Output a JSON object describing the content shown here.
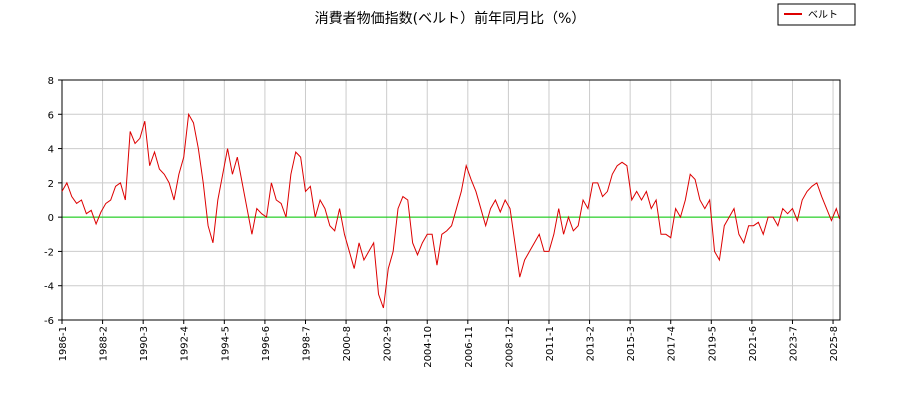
{
  "chart_data": {
    "type": "line",
    "title": "消費者物価指数(ベルト）前年同月比（%）",
    "x": [
      1986,
      1986.25,
      1986.5,
      1986.75,
      1987,
      1987.25,
      1987.5,
      1987.75,
      1988,
      1988.25,
      1988.5,
      1988.75,
      1989,
      1989.25,
      1989.5,
      1989.75,
      1990,
      1990.25,
      1990.5,
      1990.75,
      1991,
      1991.25,
      1991.5,
      1991.75,
      1992,
      1992.25,
      1992.5,
      1992.75,
      1993,
      1993.25,
      1993.5,
      1993.75,
      1994,
      1994.25,
      1994.5,
      1994.75,
      1995,
      1995.25,
      1995.5,
      1995.75,
      1996,
      1996.25,
      1996.5,
      1996.75,
      1997,
      1997.25,
      1997.5,
      1997.75,
      1998,
      1998.25,
      1998.5,
      1998.75,
      1999,
      1999.25,
      1999.5,
      1999.75,
      2000,
      2000.25,
      2000.5,
      2000.75,
      2001,
      2001.25,
      2001.5,
      2001.75,
      2002,
      2002.25,
      2002.5,
      2002.75,
      2003,
      2003.25,
      2003.5,
      2003.75,
      2004,
      2004.25,
      2004.5,
      2004.75,
      2005,
      2005.25,
      2005.5,
      2005.75,
      2006,
      2006.25,
      2006.5,
      2006.75,
      2007,
      2007.25,
      2007.5,
      2007.75,
      2008,
      2008.25,
      2008.5,
      2008.75,
      2009,
      2009.25,
      2009.5,
      2009.75,
      2010,
      2010.25,
      2010.5,
      2010.75,
      2011,
      2011.25,
      2011.5,
      2011.75,
      2012,
      2012.25,
      2012.5,
      2012.75,
      2013,
      2013.25,
      2013.5,
      2013.75,
      2014,
      2014.25,
      2014.5,
      2014.75,
      2015,
      2015.25,
      2015.5,
      2015.75,
      2016,
      2016.25,
      2016.5,
      2016.75,
      2017,
      2017.25,
      2017.5,
      2017.75,
      2018,
      2018.25,
      2018.5,
      2018.75,
      2019,
      2019.25,
      2019.5,
      2019.75,
      2020,
      2020.25,
      2020.5,
      2020.75,
      2021,
      2021.25,
      2021.5,
      2021.75,
      2022,
      2022.25,
      2022.5,
      2022.75,
      2023,
      2023.25,
      2023.5,
      2023.75,
      2024,
      2024.25,
      2024.5,
      2024.75,
      2025,
      2025.25,
      2025.5,
      2025.75,
      2025.917
    ],
    "series": [
      {
        "name": "ベルト",
        "color": "#dd0000",
        "values": [
          1.5,
          2.0,
          1.2,
          0.8,
          1.0,
          0.2,
          0.4,
          -0.4,
          0.3,
          0.8,
          1.0,
          1.8,
          2.0,
          1.0,
          5.0,
          4.3,
          4.6,
          5.6,
          3.0,
          3.8,
          2.8,
          2.5,
          2.0,
          1.0,
          2.5,
          3.5,
          6.0,
          5.5,
          4.0,
          2.0,
          -0.5,
          -1.5,
          1.0,
          2.5,
          4.0,
          2.5,
          3.5,
          2.0,
          0.5,
          -1.0,
          0.5,
          0.2,
          0.0,
          2.0,
          1.0,
          0.8,
          0.0,
          2.5,
          3.8,
          3.5,
          1.5,
          1.8,
          0.0,
          1.0,
          0.5,
          -0.5,
          -0.8,
          0.5,
          -1.0,
          -2.0,
          -3.0,
          -1.5,
          -2.5,
          -2.0,
          -1.5,
          -4.5,
          -5.3,
          -3.0,
          -2.0,
          0.5,
          1.2,
          1.0,
          -1.5,
          -2.2,
          -1.5,
          -1.0,
          -1.0,
          -2.8,
          -1.0,
          -0.8,
          -0.5,
          0.5,
          1.5,
          3.0,
          2.2,
          1.5,
          0.5,
          -0.5,
          0.5,
          1.0,
          0.3,
          1.0,
          0.5,
          -1.5,
          -3.5,
          -2.5,
          -2.0,
          -1.5,
          -1.0,
          -2.0,
          -2.0,
          -1.0,
          0.5,
          -1.0,
          0.0,
          -0.8,
          -0.5,
          1.0,
          0.5,
          2.0,
          2.0,
          1.2,
          1.5,
          2.5,
          3.0,
          3.2,
          3.0,
          1.0,
          1.5,
          1.0,
          1.5,
          0.5,
          1.0,
          -1.0,
          -1.0,
          -1.2,
          0.5,
          0.0,
          1.0,
          2.5,
          2.2,
          1.0,
          0.5,
          1.0,
          -2.0,
          -2.5,
          -0.5,
          0.0,
          0.5,
          -1.0,
          -1.5,
          -0.5,
          -0.5,
          -0.3,
          -1.0,
          0.0,
          0.0,
          -0.5,
          0.5,
          0.2,
          0.5,
          -0.2,
          1.0,
          1.5,
          1.8,
          2.0,
          1.2,
          0.5,
          -0.2,
          0.5,
          -0.1
        ]
      }
    ],
    "xlim": [
      1986,
      2025.94
    ],
    "xticks": [
      {
        "value": 1986,
        "label": "1986-1"
      },
      {
        "value": 1988.083,
        "label": "1988-2"
      },
      {
        "value": 1990.167,
        "label": "1990-3"
      },
      {
        "value": 1992.25,
        "label": "1992-4"
      },
      {
        "value": 1994.333,
        "label": "1994-5"
      },
      {
        "value": 1996.417,
        "label": "1996-6"
      },
      {
        "value": 1998.5,
        "label": "1998-7"
      },
      {
        "value": 2000.583,
        "label": "2000-8"
      },
      {
        "value": 2002.667,
        "label": "2002-9"
      },
      {
        "value": 2004.75,
        "label": "2004-10"
      },
      {
        "value": 2006.833,
        "label": "2006-11"
      },
      {
        "value": 2008.917,
        "label": "2008-12"
      },
      {
        "value": 2011,
        "label": "2011-1"
      },
      {
        "value": 2013.083,
        "label": "2013-2"
      },
      {
        "value": 2015.167,
        "label": "2015-3"
      },
      {
        "value": 2017.25,
        "label": "2017-4"
      },
      {
        "value": 2019.333,
        "label": "2019-5"
      },
      {
        "value": 2021.417,
        "label": "2021-6"
      },
      {
        "value": 2023.5,
        "label": "2023-7"
      },
      {
        "value": 2025.583,
        "label": "2025-8"
      }
    ],
    "ylim": [
      -6,
      8
    ],
    "yticks": [
      -6,
      -4,
      -2,
      0,
      2,
      4,
      6,
      8
    ],
    "grid": true,
    "zero_line_color": "#00cc00",
    "legend": "top-right"
  }
}
